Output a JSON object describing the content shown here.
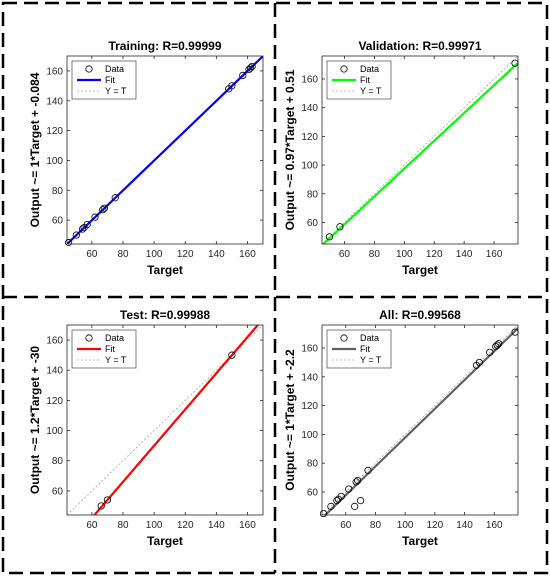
{
  "legend_labels": [
    "Data",
    "Fit",
    "Y = T"
  ],
  "colors": {
    "frame_dash": "#000000",
    "marker": "#000000",
    "identity_line": "#a6a6a6",
    "axes": "#262626"
  },
  "chart_data": [
    {
      "type": "scatter",
      "title": "Training: R=0.99999",
      "xlabel": "Target",
      "ylabel": "Output ~= 1*Target + -0.084",
      "xlim": [
        44,
        170
      ],
      "ylim": [
        44,
        170
      ],
      "xticks": [
        60,
        80,
        100,
        120,
        140,
        160
      ],
      "yticks": [
        60,
        80,
        100,
        120,
        140,
        160
      ],
      "fit": {
        "slope": 1,
        "intercept": -0.084,
        "color": "#0000ff"
      },
      "legend_placement": "top-left",
      "points": [
        [
          45,
          45
        ],
        [
          50,
          50
        ],
        [
          54,
          54
        ],
        [
          55,
          55
        ],
        [
          57,
          57
        ],
        [
          62,
          62
        ],
        [
          67,
          67
        ],
        [
          68,
          68
        ],
        [
          75,
          75
        ],
        [
          148,
          148
        ],
        [
          150,
          150
        ],
        [
          157,
          157
        ],
        [
          161,
          161
        ],
        [
          162,
          162
        ],
        [
          163,
          163
        ]
      ]
    },
    {
      "type": "scatter",
      "title": "Validation: R=0.99971",
      "xlabel": "Target",
      "ylabel": "Output ~= 0.97*Target + 0.51",
      "xlim": [
        45,
        176
      ],
      "ylim": [
        45,
        176
      ],
      "xticks": [
        60,
        80,
        100,
        120,
        140,
        160
      ],
      "yticks": [
        60,
        80,
        100,
        120,
        140,
        160
      ],
      "fit": {
        "slope": 0.97,
        "intercept": 0.51,
        "color": "#00ff00"
      },
      "legend_placement": "top-left",
      "points": [
        [
          50,
          50
        ],
        [
          57,
          57
        ],
        [
          174,
          171
        ]
      ]
    },
    {
      "type": "scatter",
      "title": "Test: R=0.99988",
      "xlabel": "Target",
      "ylabel": "Output ~= 1.2*Target + -30",
      "xlim": [
        44,
        170
      ],
      "ylim": [
        44,
        170
      ],
      "xticks": [
        60,
        80,
        100,
        120,
        140,
        160
      ],
      "yticks": [
        60,
        80,
        100,
        120,
        140,
        160
      ],
      "fit": {
        "slope": 1.2,
        "intercept": -30,
        "color": "#ff0000"
      },
      "legend_placement": "top-left",
      "points": [
        [
          66,
          50
        ],
        [
          70,
          54
        ],
        [
          150,
          150
        ]
      ]
    },
    {
      "type": "scatter",
      "title": "All: R=0.99568",
      "xlabel": "Target",
      "ylabel": "Output ~= 1*Target + -2.2",
      "xlim": [
        44,
        176
      ],
      "ylim": [
        44,
        176
      ],
      "xticks": [
        60,
        80,
        100,
        120,
        140,
        160
      ],
      "yticks": [
        60,
        80,
        100,
        120,
        140,
        160
      ],
      "fit": {
        "slope": 1,
        "intercept": -2.2,
        "color": "#616161"
      },
      "legend_placement": "top-left",
      "points": [
        [
          45,
          45
        ],
        [
          50,
          50
        ],
        [
          54,
          54
        ],
        [
          55,
          55
        ],
        [
          57,
          57
        ],
        [
          62,
          62
        ],
        [
          66,
          50
        ],
        [
          67,
          67
        ],
        [
          68,
          68
        ],
        [
          70,
          54
        ],
        [
          75,
          75
        ],
        [
          148,
          148
        ],
        [
          150,
          150
        ],
        [
          157,
          157
        ],
        [
          161,
          161
        ],
        [
          162,
          162
        ],
        [
          163,
          163
        ],
        [
          174,
          171
        ]
      ]
    }
  ]
}
